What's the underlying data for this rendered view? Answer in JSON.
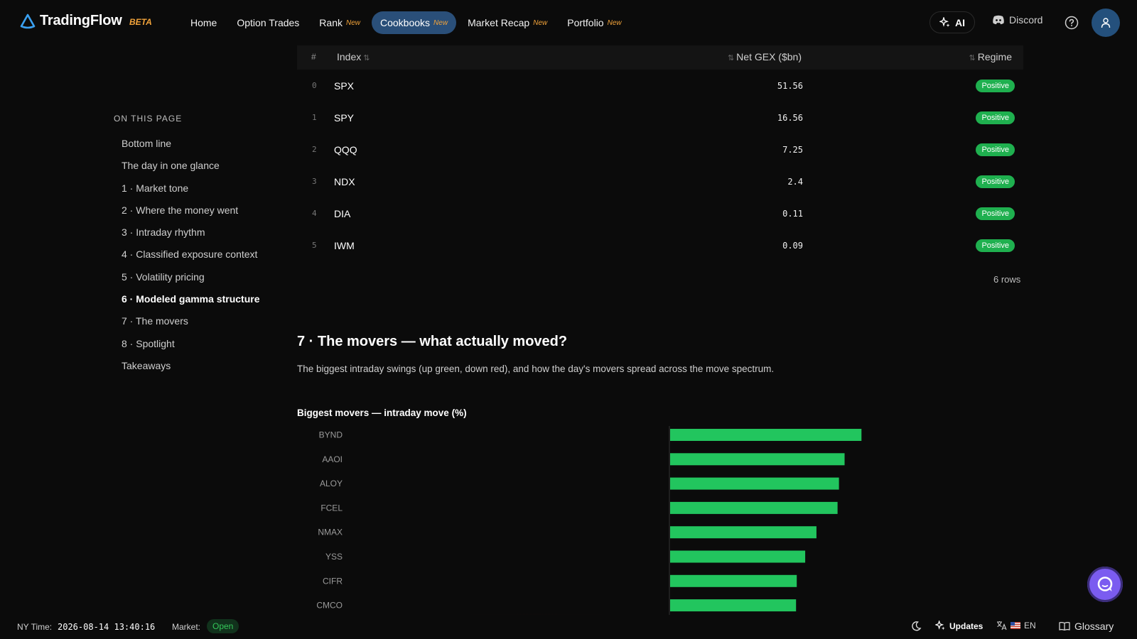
{
  "brand": {
    "name": "TradingFlow",
    "tag": "BETA"
  },
  "nav": {
    "items": [
      {
        "label": "Home",
        "new": ""
      },
      {
        "label": "Option Trades",
        "new": ""
      },
      {
        "label": "Rank",
        "new": "New"
      },
      {
        "label": "Cookbooks",
        "new": "New"
      },
      {
        "label": "Market Recap",
        "new": "New"
      },
      {
        "label": "Portfolio",
        "new": "New"
      }
    ],
    "active": "Cookbooks",
    "ai_label": "AI",
    "discord_label": "Discord"
  },
  "toc": {
    "title": "ON THIS PAGE",
    "items": [
      "Bottom line",
      "The day in one glance",
      "1 · Market tone",
      "2 · Where the money went",
      "3 · Intraday rhythm",
      "4 · Classified exposure context",
      "5 · Volatility pricing",
      "6 · Modeled gamma structure",
      "7 · The movers",
      "8 · Spotlight",
      "Takeaways"
    ],
    "active_index": 7
  },
  "gex_table": {
    "headers": {
      "hash": "#",
      "index": "Index",
      "gex": "Net GEX ($bn)",
      "regime": "Regime"
    },
    "rows": [
      {
        "idx": "0",
        "symbol": "SPX",
        "gex": "51.56",
        "regime": "Positive"
      },
      {
        "idx": "1",
        "symbol": "SPY",
        "gex": "16.56",
        "regime": "Positive"
      },
      {
        "idx": "2",
        "symbol": "QQQ",
        "gex": "7.25",
        "regime": "Positive"
      },
      {
        "idx": "3",
        "symbol": "NDX",
        "gex": "2.4",
        "regime": "Positive"
      },
      {
        "idx": "4",
        "symbol": "DIA",
        "gex": "0.11",
        "regime": "Positive"
      },
      {
        "idx": "5",
        "symbol": "IWM",
        "gex": "0.09",
        "regime": "Positive"
      }
    ],
    "row_count": "6 rows"
  },
  "section": {
    "heading": "7 · The movers — what actually moved?",
    "description": "The biggest intraday swings (up green, down red), and how the day's movers spread across the move spectrum."
  },
  "chart_data": {
    "type": "bar",
    "orientation": "horizontal",
    "title": "Biggest movers — intraday move (%)",
    "categories": [
      "BYND",
      "AAOI",
      "ALOY",
      "FCEL",
      "NMAX",
      "YSS",
      "CIFR",
      "CMCO"
    ],
    "values": [
      27.2,
      24.8,
      24.0,
      23.8,
      20.8,
      19.2,
      18.0,
      17.9
    ],
    "xlim": [
      -35,
      35
    ],
    "colors": {
      "up": "#22c55e",
      "down": "#ef4444"
    },
    "grid": false
  },
  "footer": {
    "ny_time_label": "NY Time:",
    "ny_time": "2026-08-14 13:40:16",
    "market_label": "Market:",
    "market_status": "Open",
    "updates_label": "Updates",
    "lang_label": "EN",
    "glossary_label": "Glossary"
  },
  "colors": {
    "accent": "#2a4f79",
    "positive": "#1fb04f",
    "new_tag": "#f2a33a",
    "chat": "#7b5cf0"
  }
}
